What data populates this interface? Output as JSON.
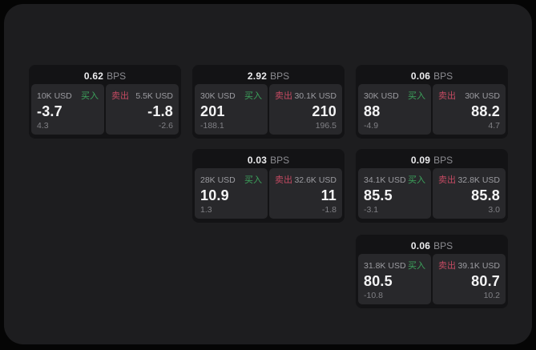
{
  "labels": {
    "bps_unit": "BPS",
    "buy": "买入",
    "sell": "卖出"
  },
  "colors": {
    "buy-color": "#3ca35c",
    "sell-color": "#c44a62",
    "panel-bg": "#28282b"
  },
  "cards": [
    {
      "bps": "0.62",
      "buy": {
        "size": "10K USD",
        "price": "-3.7",
        "sub": "4.3"
      },
      "sell": {
        "size": "5.5K USD",
        "price": "-1.8",
        "sub": "-2.6"
      }
    },
    {
      "bps": "2.92",
      "buy": {
        "size": "30K USD",
        "price": "201",
        "sub": "-188.1"
      },
      "sell": {
        "size": "30.1K USD",
        "price": "210",
        "sub": "196.5"
      }
    },
    {
      "bps": "0.06",
      "buy": {
        "size": "30K USD",
        "price": "88",
        "sub": "-4.9"
      },
      "sell": {
        "size": "30K USD",
        "price": "88.2",
        "sub": "4.7"
      }
    },
    {
      "bps": "0.03",
      "buy": {
        "size": "28K USD",
        "price": "10.9",
        "sub": "1.3"
      },
      "sell": {
        "size": "32.6K USD",
        "price": "11",
        "sub": "-1.8"
      }
    },
    {
      "bps": "0.09",
      "buy": {
        "size": "34.1K USD",
        "price": "85.5",
        "sub": "-3.1"
      },
      "sell": {
        "size": "32.8K USD",
        "price": "85.8",
        "sub": "3.0"
      }
    },
    {
      "bps": "0.06",
      "buy": {
        "size": "31.8K USD",
        "price": "80.5",
        "sub": "-10.8"
      },
      "sell": {
        "size": "39.1K USD",
        "price": "80.7",
        "sub": "10.2"
      }
    }
  ]
}
